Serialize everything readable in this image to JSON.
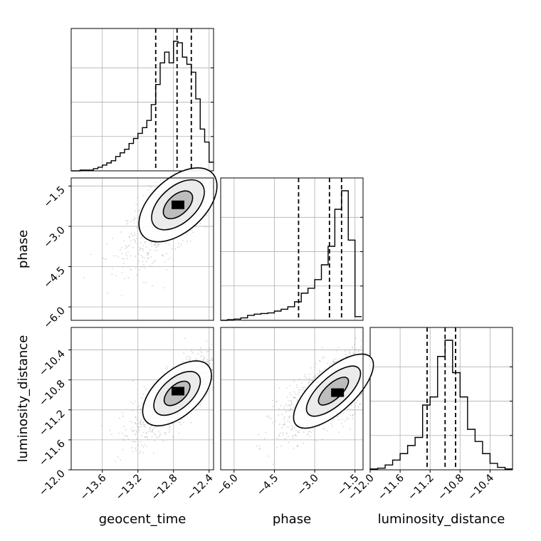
{
  "chart_data": {
    "type": "corner",
    "parameters": [
      "geocent_time",
      "phase",
      "luminosity_distance"
    ],
    "grid": true,
    "colors": {
      "line": "#000000",
      "scatter": "#b5b5b5",
      "frame": "#000000",
      "grid": "#b0b0b0"
    },
    "ranges": {
      "geocent_time": [
        -13.95,
        -12.35
      ],
      "phase": [
        -6.5,
        -1.2
      ],
      "luminosity_distance": [
        -12.0,
        -10.1
      ]
    },
    "ticks": {
      "geocent_time": [
        -13.6,
        -13.2,
        -12.8,
        -12.4
      ],
      "phase": [
        -6.0,
        -4.5,
        -3.0,
        -1.5
      ],
      "luminosity_distance": [
        -12.0,
        -11.6,
        -11.2,
        -10.8,
        -10.4
      ]
    },
    "tick_labels": {
      "geocent_time": [
        "−13.6",
        "−13.2",
        "−12.8",
        "−12.4"
      ],
      "phase": [
        "−6.0",
        "−4.5",
        "−3.0",
        "−1.5"
      ],
      "luminosity_distance": [
        "−12.0",
        "−11.6",
        "−11.2",
        "−10.8",
        "−10.4"
      ]
    },
    "quantiles": {
      "geocent_time": [
        -13.0,
        -12.76,
        -12.6
      ],
      "phase": [
        -3.6,
        -2.45,
        -2.0
      ],
      "luminosity_distance": [
        -11.24,
        -11.0,
        -10.86
      ]
    },
    "histograms": {
      "geocent_time": {
        "edges": [
          -13.95,
          -13.85,
          -13.75,
          -13.7,
          -13.65,
          -13.6,
          -13.55,
          -13.5,
          -13.45,
          -13.4,
          -13.35,
          -13.3,
          -13.25,
          -13.2,
          -13.15,
          -13.1,
          -13.05,
          -13.0,
          -12.95,
          -12.9,
          -12.85,
          -12.8,
          -12.75,
          -12.7,
          -12.65,
          -12.6,
          -12.55,
          -12.5,
          -12.45,
          -12.4,
          -12.35
        ],
        "counts": [
          0,
          1,
          1,
          3,
          5,
          8,
          11,
          14,
          20,
          25,
          30,
          38,
          45,
          52,
          60,
          70,
          92,
          120,
          150,
          165,
          150,
          180,
          178,
          158,
          148,
          137,
          100,
          58,
          40,
          12
        ]
      },
      "phase": {
        "edges": [
          -6.5,
          -6.25,
          -6.0,
          -5.75,
          -5.5,
          -5.25,
          -5.0,
          -4.75,
          -4.5,
          -4.25,
          -4.0,
          -3.75,
          -3.5,
          -3.25,
          -3.0,
          -2.75,
          -2.5,
          -2.25,
          -2.0,
          -1.75,
          -1.5,
          -1.25
        ],
        "counts": [
          0,
          0.5,
          1,
          2,
          4,
          5,
          5.5,
          6,
          7.5,
          9,
          11,
          15,
          22,
          26,
          33,
          45,
          60,
          90,
          105,
          65,
          3
        ]
      },
      "luminosity_distance": {
        "edges": [
          -12.0,
          -11.9,
          -11.8,
          -11.7,
          -11.6,
          -11.5,
          -11.4,
          -11.3,
          -11.2,
          -11.1,
          -11.0,
          -10.9,
          -10.8,
          -10.7,
          -10.6,
          -10.5,
          -10.4,
          -10.3,
          -10.2,
          -10.1
        ],
        "counts": [
          1,
          2,
          6,
          12,
          20,
          30,
          40,
          80,
          90,
          140,
          160,
          120,
          90,
          50,
          35,
          20,
          8,
          3,
          1
        ]
      }
    },
    "pairs": [
      {
        "x": "geocent_time",
        "y": "phase",
        "center": [
          -12.75,
          -2.2
        ],
        "spread": [
          0.28,
          1.0
        ],
        "correlation": 0.75,
        "peak": [
          -12.75,
          -2.2
        ]
      },
      {
        "x": "geocent_time",
        "y": "luminosity_distance",
        "center": [
          -12.76,
          -10.98
        ],
        "spread": [
          0.25,
          0.3
        ],
        "correlation": 0.8,
        "peak": [
          -12.75,
          -10.95
        ]
      },
      {
        "x": "phase",
        "y": "luminosity_distance",
        "center": [
          -2.3,
          -10.95
        ],
        "spread": [
          1.0,
          0.28
        ],
        "correlation": 0.7,
        "peak": [
          -2.15,
          -10.97
        ]
      }
    ]
  }
}
